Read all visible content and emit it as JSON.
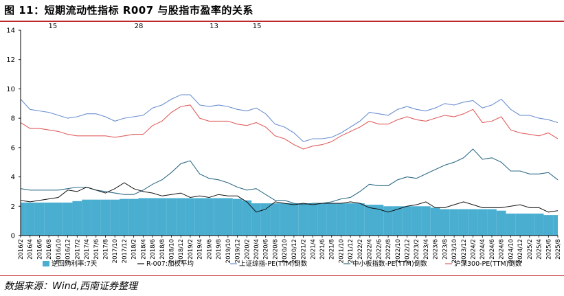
{
  "figure": {
    "title": "图 11：短期流动性指标 R007 与股指市盈率的关系",
    "source": "数据来源：Wind,西南证券整理"
  },
  "colors": {
    "bar": "#4aaed0",
    "r007": "#111111",
    "sh_pe": "#6b8fd0",
    "smb_pe": "#2d6b86",
    "hs300_pe": "#e06060",
    "rule": "#c0292c"
  },
  "chart_data": {
    "type": "line",
    "title": "短期流动性指标 R007 与股指市盈率的关系",
    "xlabel": "",
    "ylabel": "",
    "ylim": [
      0,
      14
    ],
    "yticks": [
      0,
      2,
      4,
      6,
      8,
      10,
      12,
      14
    ],
    "grid": false,
    "legend_position": "bottom",
    "x": [
      "2016/2",
      "2016/4",
      "2016/6",
      "2016/8",
      "2016/10",
      "2016/12",
      "2017/2",
      "2017/4",
      "2017/6",
      "2017/8",
      "2017/10",
      "2017/12",
      "2018/2",
      "2018/4",
      "2018/6",
      "2018/8",
      "2018/10",
      "2018/12",
      "2019/2",
      "2019/4",
      "2019/6",
      "2019/8",
      "2019/10",
      "2019/12",
      "2020/2",
      "2020/4",
      "2020/6",
      "2020/8",
      "2020/10",
      "2020/12",
      "2021/2",
      "2021/4",
      "2021/6",
      "2021/8",
      "2021/10",
      "2021/12",
      "2022/2",
      "2022/4",
      "2022/6",
      "2022/8",
      "2022/10",
      "2022/12",
      "2023/2",
      "2023/4",
      "2023/6",
      "2023/8",
      "2023/10",
      "2023/12",
      "2024/2",
      "2024/4",
      "2024/6",
      "2024/8",
      "2024/10",
      "2024/12",
      "2025/2",
      "2025/4",
      "2025/6",
      "2025/8"
    ],
    "top_annotations": [
      "15",
      "28",
      "13",
      "15"
    ],
    "series": [
      {
        "name": "逆回购利率:7天",
        "kind": "bar",
        "values": [
          2.25,
          2.25,
          2.25,
          2.25,
          2.25,
          2.25,
          2.35,
          2.45,
          2.45,
          2.45,
          2.45,
          2.5,
          2.5,
          2.55,
          2.55,
          2.55,
          2.55,
          2.55,
          2.55,
          2.55,
          2.55,
          2.55,
          2.55,
          2.5,
          2.4,
          2.2,
          2.2,
          2.2,
          2.2,
          2.2,
          2.2,
          2.2,
          2.2,
          2.2,
          2.2,
          2.2,
          2.2,
          2.1,
          2.1,
          2.0,
          2.0,
          2.0,
          2.0,
          2.0,
          1.9,
          1.8,
          1.8,
          1.8,
          1.8,
          1.8,
          1.8,
          1.7,
          1.5,
          1.5,
          1.5,
          1.5,
          1.4,
          1.4
        ]
      },
      {
        "name": "R-007:加权平均",
        "kind": "line",
        "values": [
          2.4,
          2.3,
          2.4,
          2.5,
          2.6,
          3.1,
          3.0,
          3.3,
          3.1,
          2.9,
          3.2,
          3.6,
          3.2,
          3.0,
          2.9,
          2.7,
          2.8,
          2.9,
          2.6,
          2.7,
          2.6,
          2.8,
          2.7,
          2.7,
          2.3,
          1.6,
          1.8,
          2.3,
          2.2,
          2.1,
          2.2,
          2.1,
          2.2,
          2.2,
          2.2,
          2.3,
          2.2,
          1.9,
          1.8,
          1.6,
          1.8,
          2.0,
          2.1,
          2.3,
          1.9,
          1.9,
          2.1,
          2.3,
          2.1,
          1.9,
          1.9,
          1.9,
          2.0,
          2.1,
          1.9,
          1.9,
          1.6,
          1.7
        ]
      },
      {
        "name": "上证综指-PE(TTM)倒数",
        "kind": "line",
        "values": [
          9.3,
          8.6,
          8.5,
          8.4,
          8.2,
          8.0,
          8.1,
          8.3,
          8.3,
          8.1,
          7.8,
          8.0,
          8.1,
          8.2,
          8.7,
          8.9,
          9.3,
          9.6,
          9.6,
          8.9,
          8.8,
          8.9,
          8.8,
          8.6,
          8.5,
          8.7,
          8.3,
          7.6,
          7.4,
          7.0,
          6.4,
          6.6,
          6.6,
          6.7,
          7.0,
          7.4,
          7.8,
          8.4,
          8.3,
          8.2,
          8.6,
          8.8,
          8.6,
          8.5,
          8.7,
          9.0,
          8.9,
          9.1,
          9.2,
          8.7,
          8.9,
          9.3,
          8.6,
          8.2,
          8.2,
          8.0,
          7.9,
          7.7
        ]
      },
      {
        "name": "中小板指数-PE(TTM)倒数",
        "kind": "line",
        "values": [
          3.2,
          3.1,
          3.1,
          3.1,
          3.1,
          3.2,
          3.3,
          3.3,
          3.1,
          3.0,
          2.9,
          2.8,
          2.8,
          3.1,
          3.5,
          3.8,
          4.3,
          4.9,
          5.1,
          4.2,
          3.9,
          3.8,
          3.6,
          3.3,
          3.1,
          3.2,
          2.8,
          2.4,
          2.4,
          2.2,
          2.1,
          2.2,
          2.2,
          2.3,
          2.5,
          2.6,
          3.0,
          3.5,
          3.4,
          3.4,
          3.8,
          4.0,
          3.9,
          4.2,
          4.5,
          4.8,
          5.0,
          5.3,
          5.9,
          5.2,
          5.3,
          5.0,
          4.4,
          4.4,
          4.2,
          4.2,
          4.3,
          3.8
        ]
      },
      {
        "name": "沪深300-PE(TTM)倒数",
        "kind": "line",
        "values": [
          7.7,
          7.3,
          7.3,
          7.2,
          7.1,
          6.9,
          6.8,
          6.8,
          6.8,
          6.8,
          6.7,
          6.8,
          6.9,
          6.9,
          7.5,
          7.8,
          8.4,
          8.8,
          8.9,
          8.0,
          7.8,
          7.8,
          7.8,
          7.6,
          7.5,
          7.7,
          7.4,
          6.8,
          6.6,
          6.2,
          5.9,
          6.1,
          6.2,
          6.4,
          6.8,
          7.1,
          7.4,
          7.8,
          7.6,
          7.6,
          7.9,
          8.1,
          7.9,
          7.8,
          8.0,
          8.2,
          8.1,
          8.3,
          8.6,
          7.7,
          7.8,
          8.1,
          7.2,
          7.0,
          6.9,
          6.8,
          7.0,
          6.6
        ]
      }
    ]
  }
}
